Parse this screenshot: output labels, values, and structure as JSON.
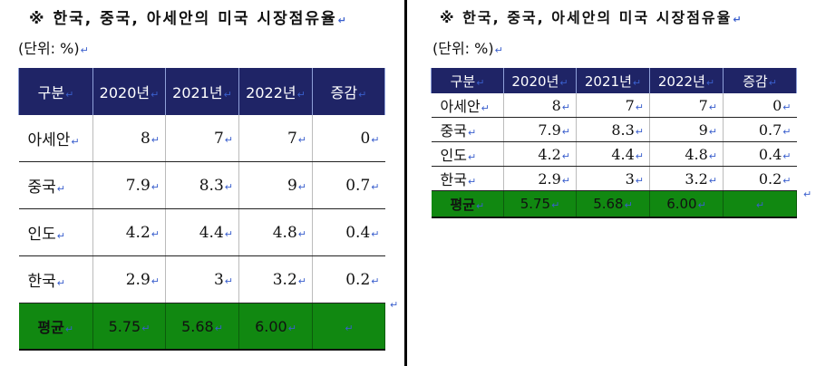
{
  "title": "※ 한국, 중국, 아세안의 미국 시장점유율",
  "unit": "(단위: %)",
  "para_mark": "↵",
  "headers": [
    "구분",
    "2020년",
    "2021년",
    "2022년",
    "증감"
  ],
  "rows": [
    {
      "label": "아세안",
      "v2020": "8",
      "v2021": "7",
      "v2022": "7",
      "change": "0"
    },
    {
      "label": "중국",
      "v2020": "7.9",
      "v2021": "8.3",
      "v2022": "9",
      "change": "0.7"
    },
    {
      "label": "인도",
      "v2020": "4.2",
      "v2021": "4.4",
      "v2022": "4.8",
      "change": "0.4"
    },
    {
      "label": "한국",
      "v2020": "2.9",
      "v2021": "3",
      "v2022": "3.2",
      "change": "0.2"
    }
  ],
  "average": {
    "label": "평균",
    "v2020": "5.75",
    "v2021": "5.68",
    "v2022": "6.00",
    "change": ""
  },
  "colors": {
    "header_bg": "#1f2466",
    "average_bg": "#118811",
    "para_mark": "#3a5fcd"
  }
}
